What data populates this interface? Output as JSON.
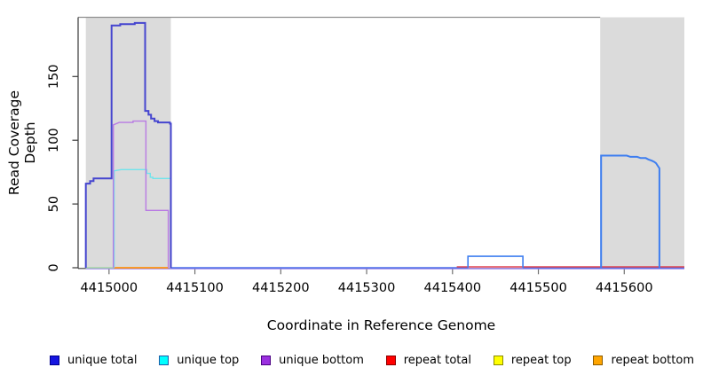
{
  "chart_data": {
    "type": "line",
    "title": "",
    "xlabel": "Coordinate in Reference Genome",
    "ylabel": "Read Coverage Depth",
    "xlim": [
      4414964,
      4415670
    ],
    "ylim": [
      0,
      196
    ],
    "x_ticks": [
      4415000,
      4415100,
      4415200,
      4415300,
      4415400,
      4415500,
      4415600
    ],
    "y_ticks": [
      0,
      50,
      100,
      150
    ],
    "grid": false,
    "legend_position": "bottom",
    "region_color": "#DBDBDB",
    "shaded_regions": [
      {
        "start": 4414973,
        "end": 4415072,
        "label": "repeat-region-left"
      },
      {
        "start": 4415572,
        "end": 4415670,
        "label": "repeat-region-right"
      }
    ],
    "legend": [
      {
        "label": "unique total",
        "fill": "#1515E0",
        "border": "#00008B"
      },
      {
        "label": "unique top",
        "fill": "#00FFFF",
        "border": "#1E5AA8"
      },
      {
        "label": "unique bottom",
        "fill": "#9B30E0",
        "border": "#4B0082"
      },
      {
        "label": "repeat total",
        "fill": "#FF0000",
        "border": "#8B0000"
      },
      {
        "label": "repeat top",
        "fill": "#FFFF00",
        "border": "#8A8A00"
      },
      {
        "label": "repeat bottom",
        "fill": "#FFA500",
        "border": "#8B5A00"
      }
    ],
    "lines": [
      {
        "name": "unique-bottom-zero",
        "series": "unique bottom",
        "color": "#9B82EA",
        "width": 1.5,
        "offset": 1,
        "points": [
          [
            4414973,
            0
          ],
          [
            4415670,
            0
          ]
        ]
      },
      {
        "name": "unique-total-zero-mid",
        "series": "unique total",
        "color": "#4B6FE8",
        "width": 1.5,
        "offset": 0,
        "points": [
          [
            4415072,
            0
          ],
          [
            4415418,
            0
          ]
        ]
      },
      {
        "name": "unique-total-zero-right",
        "series": "unique total",
        "color": "#4B6FE8",
        "width": 1.5,
        "offset": 0,
        "points": [
          [
            4415482,
            0
          ],
          [
            4415670,
            0
          ]
        ]
      },
      {
        "name": "unique-top-repeat-top-zero",
        "series": "unique top + repeat top",
        "color": "#A6D7A6",
        "width": 1.5,
        "offset": 0,
        "points": [
          [
            4414973,
            0
          ],
          [
            4415006,
            0
          ]
        ]
      },
      {
        "name": "repeat-bottom-zero",
        "series": "repeat bottom",
        "color": "#FF9310",
        "width": 1.8,
        "offset": 0,
        "points": [
          [
            4415006,
            0
          ],
          [
            4415069,
            0
          ]
        ]
      },
      {
        "name": "repeat-total-zero",
        "series": "repeat total",
        "color": "#E04450",
        "width": 1.4,
        "offset": -1,
        "points": [
          [
            4415405,
            0
          ],
          [
            4415670,
            0
          ]
        ]
      },
      {
        "name": "unique-top-left-peak",
        "series": "unique top",
        "color": "#70E4EC",
        "width": 1.4,
        "offset": 0,
        "points": [
          [
            4415006,
            0
          ],
          [
            4415006,
            76
          ],
          [
            4415014,
            77
          ],
          [
            4415044,
            77
          ],
          [
            4415044,
            74
          ],
          [
            4415048,
            74
          ],
          [
            4415048,
            71
          ],
          [
            4415051,
            71
          ],
          [
            4415051,
            70
          ],
          [
            4415072,
            70
          ],
          [
            4415072,
            0
          ]
        ]
      },
      {
        "name": "unique-bottom-left-peak",
        "series": "unique bottom",
        "color": "#B87AE3",
        "width": 1.4,
        "offset": 0,
        "points": [
          [
            4415005,
            0
          ],
          [
            4415005,
            112
          ],
          [
            4415012,
            114
          ],
          [
            4415028,
            114
          ],
          [
            4415028,
            115
          ],
          [
            4415043,
            115
          ],
          [
            4415043,
            45
          ],
          [
            4415069,
            45
          ],
          [
            4415069,
            0
          ]
        ]
      },
      {
        "name": "unique-total-left-peak",
        "series": "unique total",
        "color": "#4545CF",
        "width": 2,
        "offset": 0,
        "points": [
          [
            4414973,
            0
          ],
          [
            4414973,
            66
          ],
          [
            4414978,
            66
          ],
          [
            4414978,
            68
          ],
          [
            4414982,
            68
          ],
          [
            4414982,
            70
          ],
          [
            4415003,
            70
          ],
          [
            4415003,
            190
          ],
          [
            4415013,
            190
          ],
          [
            4415013,
            191
          ],
          [
            4415030,
            191
          ],
          [
            4415030,
            192
          ],
          [
            4415042,
            192
          ],
          [
            4415042,
            123
          ],
          [
            4415046,
            123
          ],
          [
            4415046,
            120
          ],
          [
            4415049,
            120
          ],
          [
            4415049,
            117
          ],
          [
            4415053,
            117
          ],
          [
            4415053,
            115
          ],
          [
            4415057,
            115
          ],
          [
            4415057,
            114
          ],
          [
            4415071,
            114
          ],
          [
            4415071,
            113
          ],
          [
            4415072,
            113
          ],
          [
            4415072,
            0
          ]
        ]
      },
      {
        "name": "unique-total-mid-bump",
        "series": "unique total",
        "color": "#3E7EF0",
        "width": 1.6,
        "offset": 0,
        "points": [
          [
            4415418,
            0
          ],
          [
            4415418,
            9
          ],
          [
            4415482,
            9
          ],
          [
            4415482,
            0
          ]
        ]
      },
      {
        "name": "unique-total-right-block",
        "series": "unique total",
        "color": "#3E7EF0",
        "width": 2,
        "offset": 0,
        "points": [
          [
            4415573,
            0
          ],
          [
            4415573,
            88
          ],
          [
            4415603,
            88
          ],
          [
            4415607,
            87
          ],
          [
            4415615,
            87
          ],
          [
            4415619,
            86
          ],
          [
            4415625,
            86
          ],
          [
            4415628,
            85
          ],
          [
            4415632,
            84
          ],
          [
            4415635,
            83
          ],
          [
            4415637,
            82
          ],
          [
            4415639,
            80
          ],
          [
            4415641,
            78
          ],
          [
            4415641,
            0
          ]
        ]
      }
    ],
    "axis_color": "#3A3A3A",
    "top_border_color": "#909090",
    "tick_color": "#707070"
  }
}
